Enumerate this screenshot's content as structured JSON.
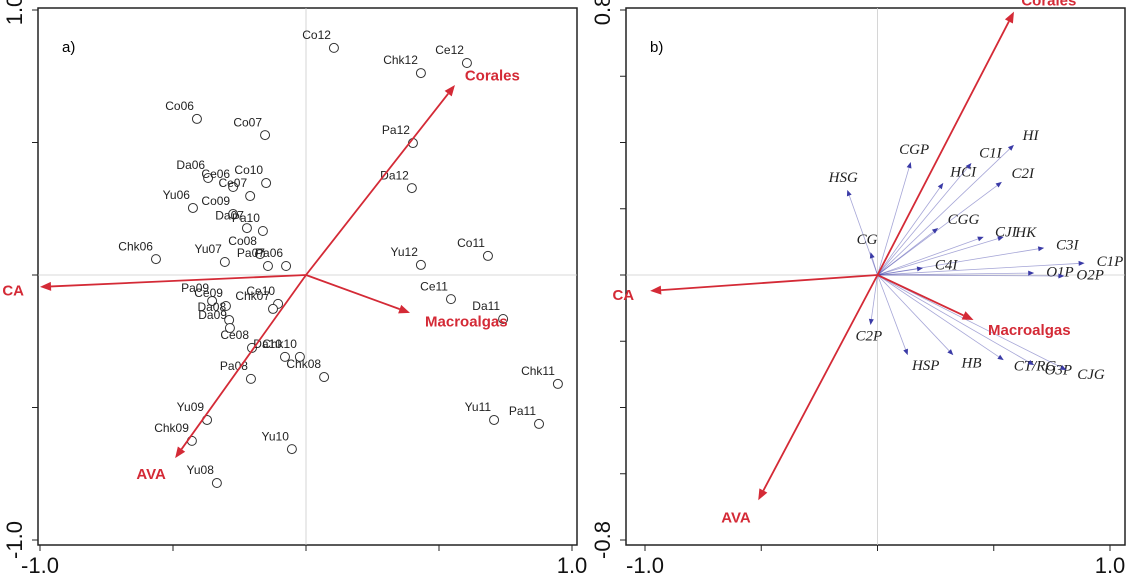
{
  "chart_data": [
    {
      "type": "biplot",
      "label": "a)",
      "xlim": [
        -1.0,
        1.0
      ],
      "ylim": [
        -1.0,
        1.0
      ],
      "xticks": [
        {
          "value": -1.0,
          "label": "-1.0"
        },
        {
          "value": -0.5,
          "label": null
        },
        {
          "value": 0,
          "label": null
        },
        {
          "value": 0.5,
          "label": null
        },
        {
          "value": 1.0,
          "label": "1.0"
        }
      ],
      "yticks": [
        {
          "value": -1.0,
          "label": "-1.0"
        },
        {
          "value": -0.5,
          "label": null
        },
        {
          "value": 0,
          "label": null
        },
        {
          "value": 0.5,
          "label": null
        },
        {
          "value": 1.0,
          "label": "1.0"
        }
      ],
      "points": {
        "color": "#333333",
        "labels": [
          "Co12",
          "Chk12",
          "Ce12",
          "Co06",
          "Co07",
          "Pa12",
          "Da06",
          "Ce06",
          "Co10",
          "Ce07",
          "Da12",
          "Yu06",
          "Co09",
          "Da07",
          "Pa10",
          "Co08",
          "Chk06",
          "Yu07",
          "Pa07",
          "Pa06",
          "Yu12",
          "Co11",
          "Pa09",
          "Ce09",
          "Da08",
          "Da09",
          "Ce10",
          "Chk07",
          "Ce11",
          "Da11",
          "Ce08",
          "Da10",
          "Chk10",
          "Pa08",
          "Chk08",
          "Chk11",
          "Yu11",
          "Pa11",
          "Yu09",
          "Chk09",
          "Yu10",
          "Yu08"
        ],
        "x": [
          0.105,
          0.432,
          0.605,
          -0.41,
          -0.154,
          0.402,
          -0.368,
          -0.274,
          -0.15,
          -0.21,
          0.398,
          -0.425,
          -0.274,
          -0.222,
          -0.162,
          -0.173,
          -0.564,
          -0.305,
          -0.143,
          -0.075,
          0.432,
          0.684,
          -0.353,
          -0.301,
          -0.289,
          -0.286,
          -0.105,
          -0.124,
          0.545,
          0.741,
          -0.203,
          -0.079,
          -0.023,
          -0.207,
          0.068,
          0.947,
          0.707,
          0.876,
          -0.372,
          -0.429,
          -0.053,
          -0.335
        ],
        "y": [
          0.857,
          0.762,
          0.8,
          0.589,
          0.528,
          0.498,
          0.366,
          0.332,
          0.347,
          0.298,
          0.328,
          0.253,
          0.23,
          0.177,
          0.166,
          0.079,
          0.06,
          0.049,
          0.034,
          0.034,
          0.038,
          0.072,
          -0.098,
          -0.117,
          -0.17,
          -0.2,
          -0.109,
          -0.128,
          -0.091,
          -0.166,
          -0.275,
          -0.309,
          -0.309,
          -0.392,
          -0.385,
          -0.411,
          -0.547,
          -0.562,
          -0.547,
          -0.626,
          -0.657,
          -0.785
        ]
      },
      "vectors": [
        {
          "color": "#d42a36",
          "labels": [
            "Corales",
            "CA",
            "Macroalgas",
            "AVA"
          ],
          "x": [
            0.56,
            -1.0,
            0.391,
            -0.492
          ],
          "y": [
            0.717,
            -0.045,
            -0.143,
            -0.691
          ]
        }
      ]
    },
    {
      "type": "biplot",
      "label": "b)",
      "xlim": [
        -1.0,
        1.0
      ],
      "ylim": [
        -0.8,
        0.8
      ],
      "xticks": [
        {
          "value": -1.0,
          "label": "-1.0"
        },
        {
          "value": -0.5,
          "label": null
        },
        {
          "value": 0,
          "label": null
        },
        {
          "value": 0.5,
          "label": null
        },
        {
          "value": 1.0,
          "label": "1.0"
        }
      ],
      "yticks": [
        {
          "value": -0.8,
          "label": "-0.8"
        },
        {
          "value": -0.6,
          "label": null
        },
        {
          "value": -0.4,
          "label": null
        },
        {
          "value": -0.2,
          "label": null
        },
        {
          "value": 0,
          "label": null
        },
        {
          "value": 0.2,
          "label": null
        },
        {
          "value": 0.4,
          "label": null
        },
        {
          "value": 0.6,
          "label": null
        },
        {
          "value": 0.8,
          "label": "0.8"
        }
      ],
      "vectors": [
        {
          "color": "#3a3aa6",
          "labels": [
            "HSG",
            "CG",
            "CGP",
            "HCI",
            "C1I",
            "HI",
            "C2I",
            "CGG",
            "CJI",
            "HK",
            "C3I",
            "C1P",
            "O1P",
            "O2P",
            "C4I",
            "C2P",
            "HSP",
            "HB",
            "CT/RG",
            "O3P",
            "CJG"
          ],
          "x": [
            -0.13,
            -0.03,
            0.143,
            0.283,
            0.404,
            0.587,
            0.535,
            0.261,
            0.457,
            0.543,
            0.717,
            0.891,
            0.674,
            0.804,
            0.196,
            -0.03,
            0.13,
            0.326,
            0.543,
            0.674,
            0.813
          ],
          "y": [
            0.257,
            0.069,
            0.341,
            0.278,
            0.338,
            0.393,
            0.281,
            0.142,
            0.115,
            0.115,
            0.082,
            0.036,
            0.006,
            -0.003,
            0.021,
            -0.151,
            -0.242,
            -0.242,
            -0.257,
            -0.272,
            -0.287
          ]
        },
        {
          "color": "#d42a36",
          "labels": [
            "Corales",
            "CA",
            "Macroalgas",
            "AVA"
          ],
          "x": [
            0.587,
            -0.978,
            0.413,
            -0.513
          ],
          "y": [
            0.795,
            -0.048,
            -0.136,
            -0.68
          ]
        }
      ]
    }
  ]
}
